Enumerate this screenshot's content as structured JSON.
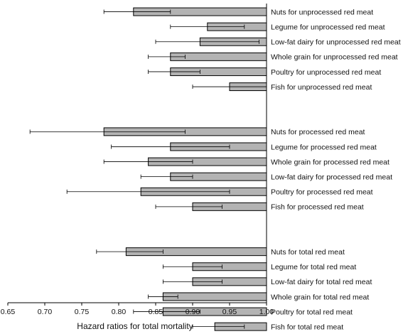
{
  "chart_data": {
    "type": "bar",
    "orientation": "horizontal",
    "xlabel": "Hazard ratios for total mortality",
    "xlim": [
      0.65,
      1.0
    ],
    "xticks": [
      "0.65",
      "0.70",
      "0.75",
      "0.80",
      "0.85",
      "0.90",
      "0.95",
      "1.00"
    ],
    "bar_color": "#b3b3b3",
    "grid": false,
    "groups": [
      {
        "items": [
          {
            "label": "Nuts for unprocessed red meat",
            "value": 0.82,
            "ci_low": 0.78,
            "ci_high": 0.87
          },
          {
            "label": "Legume for unprocessed red meat",
            "value": 0.92,
            "ci_low": 0.87,
            "ci_high": 0.97
          },
          {
            "label": "Low-fat dairy for unprocessed red meat",
            "value": 0.91,
            "ci_low": 0.85,
            "ci_high": 0.99
          },
          {
            "label": "Whole grain for unprocessed red meat",
            "value": 0.87,
            "ci_low": 0.84,
            "ci_high": 0.89
          },
          {
            "label": "Poultry for unprocessed red meat",
            "value": 0.87,
            "ci_low": 0.84,
            "ci_high": 0.91
          },
          {
            "label": "Fish for unprocessed red meat",
            "value": 0.95,
            "ci_low": 0.9,
            "ci_high": 1.0
          }
        ]
      },
      {
        "items": [
          {
            "label": "Nuts for processed red meat",
            "value": 0.78,
            "ci_low": 0.68,
            "ci_high": 0.89
          },
          {
            "label": "Legume for processed red meat",
            "value": 0.87,
            "ci_low": 0.79,
            "ci_high": 0.95
          },
          {
            "label": "Whole grain for processed red meat",
            "value": 0.84,
            "ci_low": 0.78,
            "ci_high": 0.9
          },
          {
            "label": "Low-fat dairy for processed red meat",
            "value": 0.87,
            "ci_low": 0.83,
            "ci_high": 0.9
          },
          {
            "label": "Poultry for processed red meat",
            "value": 0.83,
            "ci_low": 0.73,
            "ci_high": 0.95
          },
          {
            "label": "Fish for processed red meat",
            "value": 0.9,
            "ci_low": 0.85,
            "ci_high": 0.94
          }
        ]
      },
      {
        "items": [
          {
            "label": "Nuts for total red meat",
            "value": 0.81,
            "ci_low": 0.77,
            "ci_high": 0.86
          },
          {
            "label": "Legume for total red meat",
            "value": 0.9,
            "ci_low": 0.86,
            "ci_high": 0.94
          },
          {
            "label": "Low-fat dairy for total red meat",
            "value": 0.9,
            "ci_low": 0.86,
            "ci_high": 0.94
          },
          {
            "label": "Whole grain for total red meat",
            "value": 0.86,
            "ci_low": 0.84,
            "ci_high": 0.88
          },
          {
            "label": "Poultry for total red meat",
            "value": 0.86,
            "ci_low": 0.82,
            "ci_high": 0.91
          },
          {
            "label": "Fish for total red meat",
            "value": 0.93,
            "ci_low": 0.9,
            "ci_high": 0.97
          }
        ]
      }
    ]
  }
}
